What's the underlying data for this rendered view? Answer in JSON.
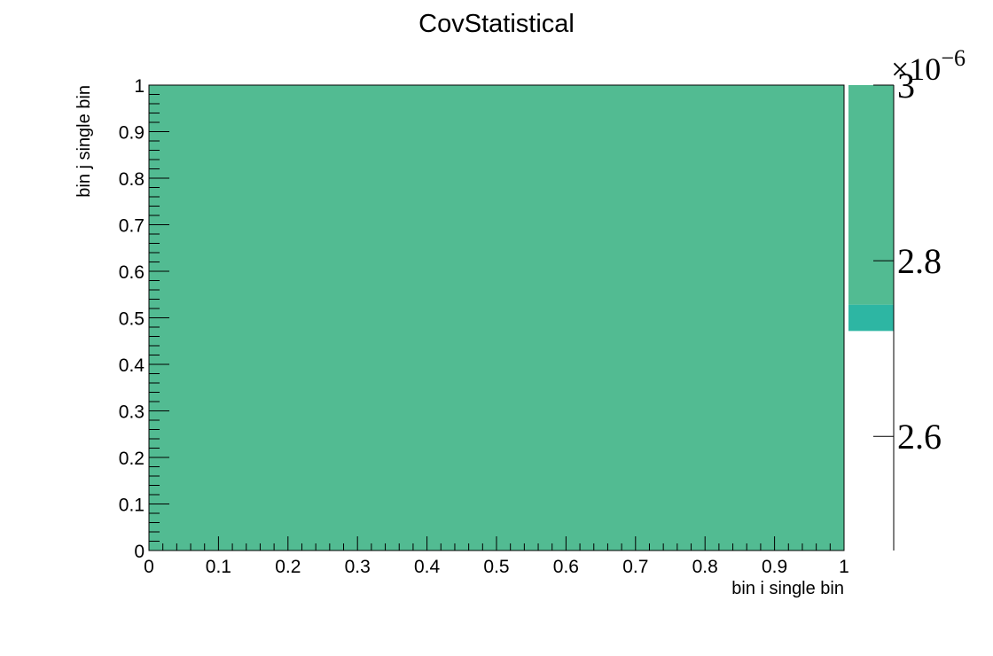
{
  "chart_data": {
    "type": "heatmap",
    "title": "CovStatistical",
    "xlabel": "bin i single bin",
    "ylabel": "bin j single bin",
    "xlim": [
      0,
      1
    ],
    "ylim": [
      0,
      1
    ],
    "x_ticks": [
      "0",
      "0.1",
      "0.2",
      "0.3",
      "0.4",
      "0.5",
      "0.6",
      "0.7",
      "0.8",
      "0.9",
      "1"
    ],
    "y_ticks": [
      "0",
      "0.1",
      "0.2",
      "0.3",
      "0.4",
      "0.5",
      "0.6",
      "0.7",
      "0.8",
      "0.9",
      "1"
    ],
    "cells": [
      {
        "x_range": [
          0,
          1
        ],
        "y_range": [
          0,
          1
        ],
        "value": 2.9e-06
      }
    ],
    "cell_color": "#52bb92",
    "colorbar": {
      "range": [
        2.47e-06,
        3e-06
      ],
      "ticks": [
        "2.6",
        "2.8",
        "3"
      ],
      "tick_values": [
        2.6,
        2.8,
        3.0
      ],
      "exponent_prefix": "×10",
      "exponent": "−6",
      "bands": [
        {
          "from": 2.72,
          "to": 2.75,
          "color": "#2db6a3"
        },
        {
          "from": 2.75,
          "to": 3.0,
          "color": "#52bb92"
        }
      ]
    },
    "grid": false,
    "legend": "none"
  }
}
